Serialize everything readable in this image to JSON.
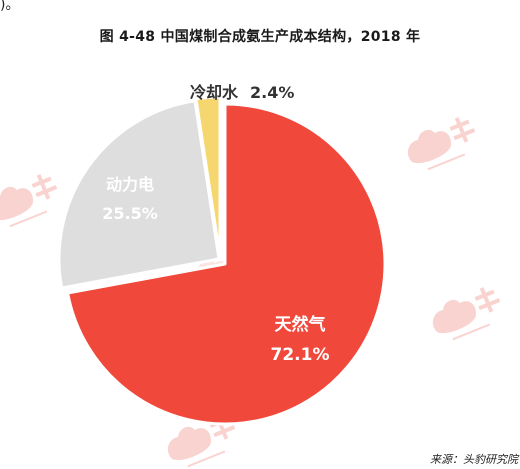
{
  "page": {
    "corner_mark": ")。",
    "title": "图 4-48 中国煤制合成氨生产成本结构，2018 年",
    "source": "来源：头豹研究院"
  },
  "chart_data": {
    "type": "pie",
    "title": "图 4-48 中国煤制合成氨生产成本结构，2018 年",
    "labels": [
      "天然气",
      "动力电",
      "冷却水"
    ],
    "values": [
      72.1,
      25.5,
      2.4
    ],
    "value_labels": [
      "72.1%",
      "25.5%",
      "2.4%"
    ],
    "unit": "%",
    "start": "12 o'clock, clockwise",
    "colors": [
      "#F0493C",
      "#DEDEDE",
      "#F6D66E"
    ],
    "label_colors": [
      "#ffffff",
      "#ffffff",
      "#333333"
    ],
    "watermark_color": "#F6B7B2"
  }
}
